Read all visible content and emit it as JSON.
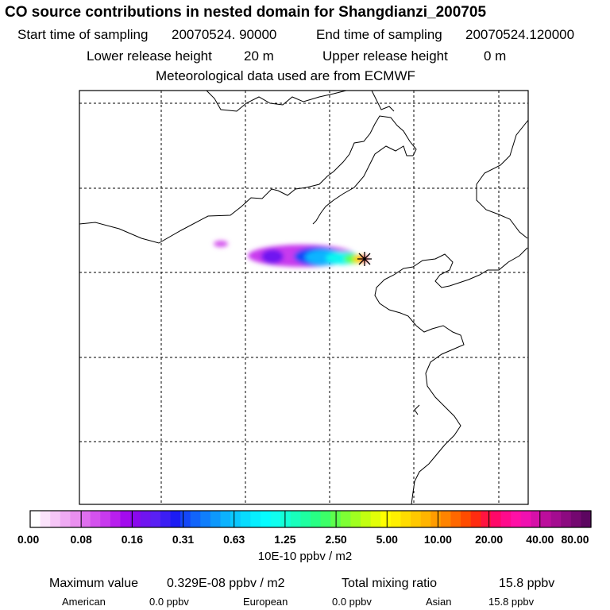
{
  "header": {
    "title": "CO  source contributions in nested domain for Shangdianzi_200705",
    "start_label": "Start time of sampling",
    "start_value": "20070524. 90000",
    "end_label": "End time of sampling",
    "end_value": "20070524.120000",
    "lower_label": "Lower release height",
    "lower_value": "20 m",
    "upper_label": "Upper release height",
    "upper_value": "0 m",
    "met_text": "Meteorological data used are from ECMWF"
  },
  "chart_data": {
    "type": "heatmap",
    "title": "CO  source contributions in nested domain for Shangdianzi_200705",
    "colorbar": {
      "unit": "10E-10 ppbv / m2",
      "tick_labels": [
        "0.00",
        "0.08",
        "0.16",
        "0.31",
        "0.63",
        "1.25",
        "2.50",
        "5.00",
        "10.00",
        "20.00",
        "40.00",
        "80.00"
      ],
      "colors": [
        "#ffffff",
        "#fbe3fb",
        "#f6c6f7",
        "#efaaf3",
        "#ea8fef",
        "#df6fee",
        "#d452ee",
        "#c83aee",
        "#b81fee",
        "#a30bee",
        "#8a08ee",
        "#7014f0",
        "#5a20f4",
        "#3c1ef4",
        "#1c1cf4",
        "#1448f8",
        "#1264fa",
        "#107efb",
        "#0e98fc",
        "#0cb2fd",
        "#0ac8fe",
        "#08dcfe",
        "#07eeff",
        "#06fcff",
        "#10fff0",
        "#14ffd6",
        "#18ffbc",
        "#1effa0",
        "#28ff84",
        "#3cff68",
        "#5cff4c",
        "#7eff34",
        "#a0ff20",
        "#c2ff10",
        "#e2ff08",
        "#ffff00",
        "#fff000",
        "#ffdc00",
        "#ffc800",
        "#ffb400",
        "#ff9c00",
        "#ff8400",
        "#ff6800",
        "#ff4c00",
        "#ff2c10",
        "#ff1440",
        "#ff0868",
        "#ff0a8c",
        "#ff10a6",
        "#f010b0",
        "#d610a8",
        "#bc0e9c",
        "#a40c90",
        "#8c0a80",
        "#740870",
        "#5c0660"
      ]
    },
    "grid": true,
    "receptor": "Shangdianzi",
    "plume": [
      {
        "x": 0.315,
        "y": 0.363,
        "value": 0.12
      },
      {
        "x": 0.44,
        "y": 0.365,
        "value": 0.2
      },
      {
        "x": 0.52,
        "y": 0.375,
        "value": 0.5
      },
      {
        "x": 0.56,
        "y": 0.373,
        "value": 1.0
      },
      {
        "x": 0.62,
        "y": 0.375,
        "value": 2.0
      },
      {
        "x": 0.65,
        "y": 0.376,
        "value": 5.0
      },
      {
        "x": 0.665,
        "y": 0.376,
        "value": 20.0
      }
    ]
  },
  "stats": {
    "max_label": "Maximum value",
    "max_value": "0.329E-08 ppbv / m2",
    "total_label": "Total mixing ratio",
    "total_value": "15.8 ppbv",
    "american_label": "American",
    "american_value": "0.0 ppbv",
    "european_label": "European",
    "european_value": "0.0 ppbv",
    "asian_label": "Asian",
    "asian_value": "15.8 ppbv"
  }
}
